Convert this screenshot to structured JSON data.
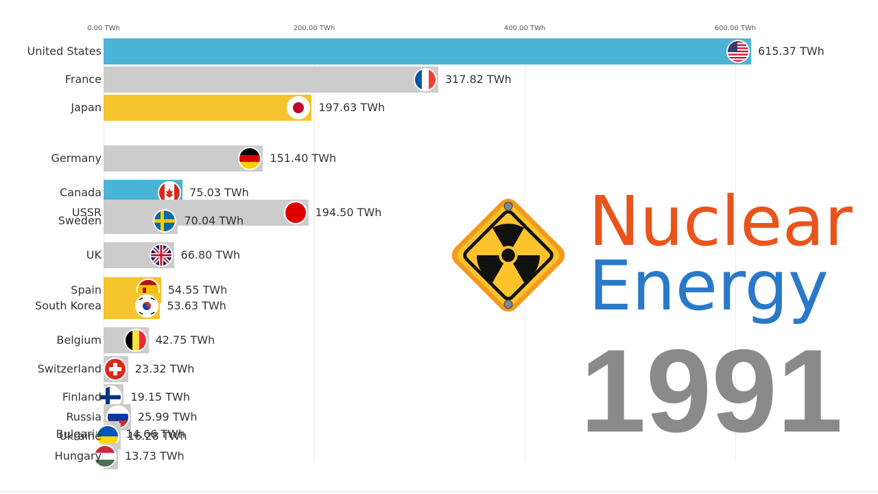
{
  "title": {
    "line1": "Nuclear",
    "line2": "Energy"
  },
  "year": "1991",
  "colors": {
    "us": "#4ab4d6",
    "fr": "#cccccc",
    "jp": "#f5c42c",
    "title_orange": "#e8541c",
    "title_blue": "#2a79c9",
    "year": "#8a8a8a"
  },
  "chart_data": {
    "type": "bar",
    "orientation": "horizontal",
    "unit": "TWh",
    "xlim": [
      0,
      600
    ],
    "ticks": [
      "0.00 TWh",
      "200.00 TWh",
      "400.00 TWh",
      "600.00 TWh"
    ],
    "tick_values": [
      0,
      200,
      400,
      600
    ],
    "series": [
      {
        "country": "United States",
        "value": 615.37,
        "value_label": "615.37 TWh",
        "flag": "us",
        "color": "#4ab4d6"
      },
      {
        "country": "France",
        "value": 317.82,
        "value_label": "317.82 TWh",
        "flag": "fr",
        "color": "#cccccc"
      },
      {
        "country": "Japan",
        "value": 197.63,
        "value_label": "197.63 TWh",
        "flag": "jp",
        "color": "#f5c42c"
      },
      {
        "country": "Germany",
        "value": 151.4,
        "value_label": "151.40 TWh",
        "flag": "de",
        "color": "#cccccc"
      },
      {
        "country": "Canada",
        "value": 75.03,
        "value_label": "75.03 TWh",
        "flag": "ca",
        "color": "#4ab4d6"
      },
      {
        "country": "USSR",
        "value": 194.5,
        "value_label": "194.50 TWh",
        "flag": "ussr",
        "color": "#cccccc"
      },
      {
        "country": "Sweden",
        "value": 70.04,
        "value_label": "70.04 TWh",
        "flag": "se",
        "color": "#cccccc"
      },
      {
        "country": "UK",
        "value": 66.8,
        "value_label": "66.80 TWh",
        "flag": "uk",
        "color": "#cccccc"
      },
      {
        "country": "Spain",
        "value": 54.55,
        "value_label": "54.55 TWh",
        "flag": "es",
        "color": "#f5c42c"
      },
      {
        "country": "South Korea",
        "value": 53.63,
        "value_label": "53.63 TWh",
        "flag": "kr",
        "color": "#f5c42c"
      },
      {
        "country": "Belgium",
        "value": 42.75,
        "value_label": "42.75 TWh",
        "flag": "be",
        "color": "#cccccc"
      },
      {
        "country": "Switzerland",
        "value": 23.32,
        "value_label": "23.32 TWh",
        "flag": "ch",
        "color": "#cccccc"
      },
      {
        "country": "Finland",
        "value": 19.15,
        "value_label": "19.15 TWh",
        "flag": "fi",
        "color": "#cccccc"
      },
      {
        "country": "Russia",
        "value": 25.99,
        "value_label": "25.99 TWh",
        "flag": "ru",
        "color": "#cccccc"
      },
      {
        "country": "Bulgaria",
        "value": 14.66,
        "value_label": "14.66 TWh",
        "flag": "bg",
        "color": "#cccccc"
      },
      {
        "country": "Ukraine",
        "value": 16.28,
        "value_label": "16.28 TWh",
        "flag": "ua",
        "color": "#cccccc"
      },
      {
        "country": "Hungary",
        "value": 13.73,
        "value_label": "13.73 TWh",
        "flag": "hu",
        "color": "#cccccc"
      }
    ]
  }
}
